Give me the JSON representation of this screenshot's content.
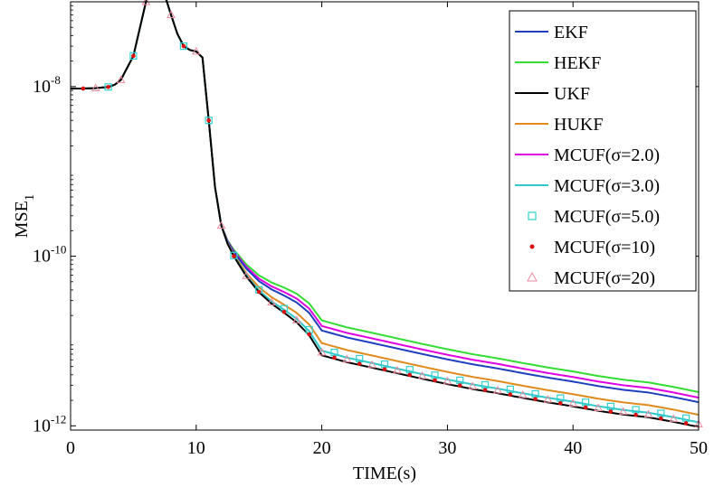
{
  "chart_data": {
    "type": "line",
    "xlabel": "TIME(s)",
    "ylabel": "MSE",
    "ylabel_sub": "1",
    "xlim": [
      0,
      50
    ],
    "ylim": [
      1e-12,
      1e-07
    ],
    "y_scale": "log",
    "grid": false,
    "legend_position": "top-right",
    "x_ticks": [
      {
        "value": 0,
        "label": "0"
      },
      {
        "value": 10,
        "label": "10"
      },
      {
        "value": 20,
        "label": "20"
      },
      {
        "value": 30,
        "label": "30"
      },
      {
        "value": 40,
        "label": "40"
      },
      {
        "value": 50,
        "label": "50"
      }
    ],
    "y_ticks": [
      {
        "value": 1e-08,
        "base": "10",
        "exp": "-8"
      },
      {
        "value": 1e-10,
        "base": "10",
        "exp": "-10"
      },
      {
        "value": 1e-12,
        "base": "10",
        "exp": "-12"
      }
    ],
    "base_curve": {
      "x": [
        0,
        1,
        2,
        3,
        3.5,
        4,
        5,
        6,
        6.5,
        7,
        7.5,
        8,
        8.5,
        9,
        9.5,
        10,
        10.5,
        11,
        11.5,
        12,
        12.5,
        13,
        14,
        15,
        16,
        17,
        18,
        19,
        20,
        22,
        24,
        26,
        28,
        30,
        32,
        34,
        36,
        38,
        40,
        42,
        44,
        46,
        48,
        50
      ],
      "y": [
        9.5e-09,
        9.5e-09,
        9.6e-09,
        9.9e-09,
        1.05e-08,
        1.2e-08,
        2.3e-08,
        1e-07,
        1.5e-07,
        1.9e-07,
        1.2e-07,
        7e-08,
        4.2e-08,
        3e-08,
        2.7e-08,
        2.6e-08,
        2.2e-08,
        4e-09,
        6.5e-10,
        2.3e-10,
        1.4e-10,
        1e-10,
        5.8e-11,
        3.8e-11,
        2.8e-11,
        2.2e-11,
        1.7e-11,
        1.2e-11,
        7e-12,
        5.8e-12,
        5e-12,
        4.3e-12,
        3.7e-12,
        3.2e-12,
        2.8e-12,
        2.5e-12,
        2.2e-12,
        1.95e-12,
        1.75e-12,
        1.55e-12,
        1.4e-12,
        1.3e-12,
        1.15e-12,
        1e-12
      ]
    },
    "series": [
      {
        "name": "EKF",
        "color": "#1f3fbf",
        "style": "line",
        "tail_factor": 1.9
      },
      {
        "name": "HEKF",
        "color": "#33dd33",
        "style": "line",
        "tail_factor": 2.5
      },
      {
        "name": "UKF",
        "color": "#000000",
        "style": "line",
        "tail_factor": 0.97
      },
      {
        "name": "HUKF",
        "color": "#e08a1e",
        "style": "line",
        "tail_factor": 1.35
      },
      {
        "name": "MCUF(σ=2.0)",
        "color": "#e000e0",
        "style": "line",
        "tail_factor": 2.15
      },
      {
        "name": "MCUF(σ=3.0)",
        "color": "#30c8c8",
        "style": "line",
        "tail_factor": 1.1
      },
      {
        "name": "MCUF(σ=5.0)",
        "color": "#30d0d0",
        "style": "square",
        "tail_factor": 1.15
      },
      {
        "name": "MCUF(σ=10)",
        "color": "#dd1111",
        "style": "dot",
        "tail_factor": 1.0
      },
      {
        "name": "MCUF(σ=20)",
        "color": "#f08aa0",
        "style": "triangle",
        "tail_factor": 1.05
      }
    ]
  }
}
